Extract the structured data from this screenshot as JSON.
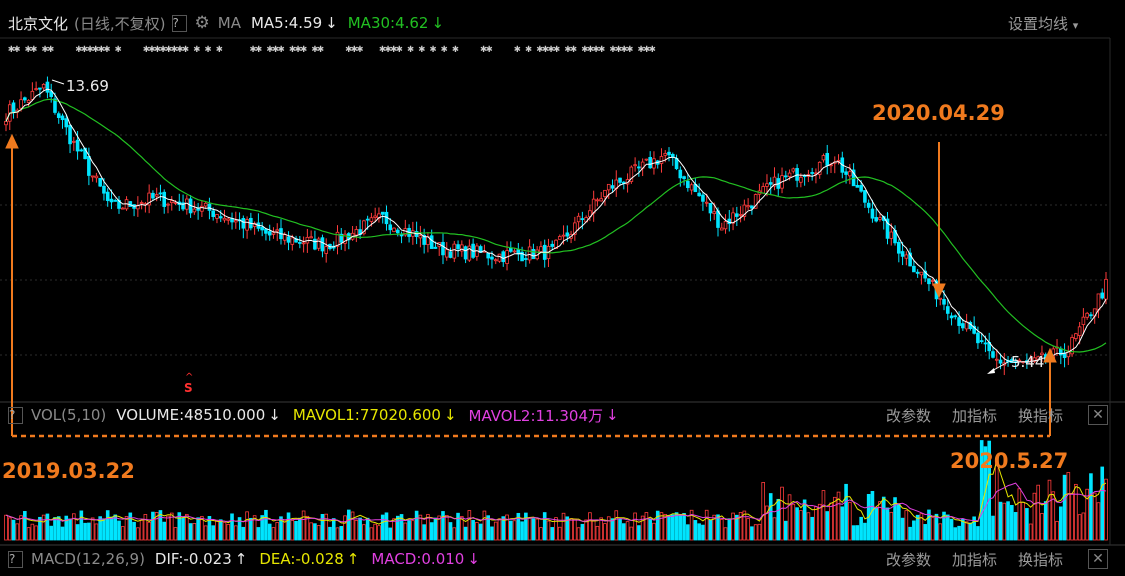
{
  "header": {
    "stock_name": "北京文化",
    "mode": "(日线,不复权)",
    "help": "?",
    "indicator": "MA",
    "ma5": "MA5:4.59",
    "ma30": "MA30:4.62",
    "settings": "设置均线"
  },
  "vol_bar": {
    "help": "?",
    "name": "VOL(5,10)",
    "volume": "VOLUME:48510.000",
    "mavol1": "MAVOL1:77020.600",
    "mavol2": "MAVOL2:11.304万",
    "btn_params": "改参数",
    "btn_add": "加指标",
    "btn_switch": "换指标"
  },
  "macd_bar": {
    "help": "?",
    "name": "MACD(12,26,9)",
    "dif": "DIF:-0.023",
    "dea": "DEA:-0.028",
    "macd": "MACD:0.010",
    "btn_params": "改参数",
    "btn_add": "加指标",
    "btn_switch": "换指标"
  },
  "price_labels": {
    "high": "13.69",
    "low": "5.44",
    "signal": "S"
  },
  "annotations": {
    "start": "2019.03.22",
    "mid": "2020.04.29",
    "end": "2020.5.27"
  },
  "colors": {
    "up": "#ff3c3c",
    "down": "#00e5ff",
    "ma5": "#ffffff",
    "ma30": "#22c022",
    "mavol1": "#e6e600",
    "mavol2": "#e040e0",
    "annotation": "#f07a1e"
  },
  "chart_data": {
    "type": "candlestick",
    "title": "北京文化 (日线,不复权)",
    "series_price_keypoints": {
      "x_index": [
        0,
        10,
        18,
        28,
        40,
        55,
        70,
        85,
        100,
        115,
        130,
        145,
        160,
        175,
        190,
        205,
        220,
        235,
        250,
        262,
        272,
        282,
        292
      ],
      "close": [
        12.9,
        13.69,
        12.0,
        10.1,
        10.4,
        10.0,
        9.3,
        9.0,
        9.8,
        8.9,
        8.7,
        8.8,
        10.7,
        11.7,
        9.6,
        10.9,
        11.6,
        9.2,
        7.2,
        5.6,
        5.44,
        5.9,
        7.8
      ]
    },
    "max_label": 13.69,
    "min_label": 5.44,
    "ma5_last": 4.59,
    "ma30_last": 4.62,
    "volume": 48510.0,
    "mavol1": 77020.6,
    "mavol2_wan": 11.304,
    "dif": -0.023,
    "dea": -0.028,
    "macd": 0.01
  }
}
